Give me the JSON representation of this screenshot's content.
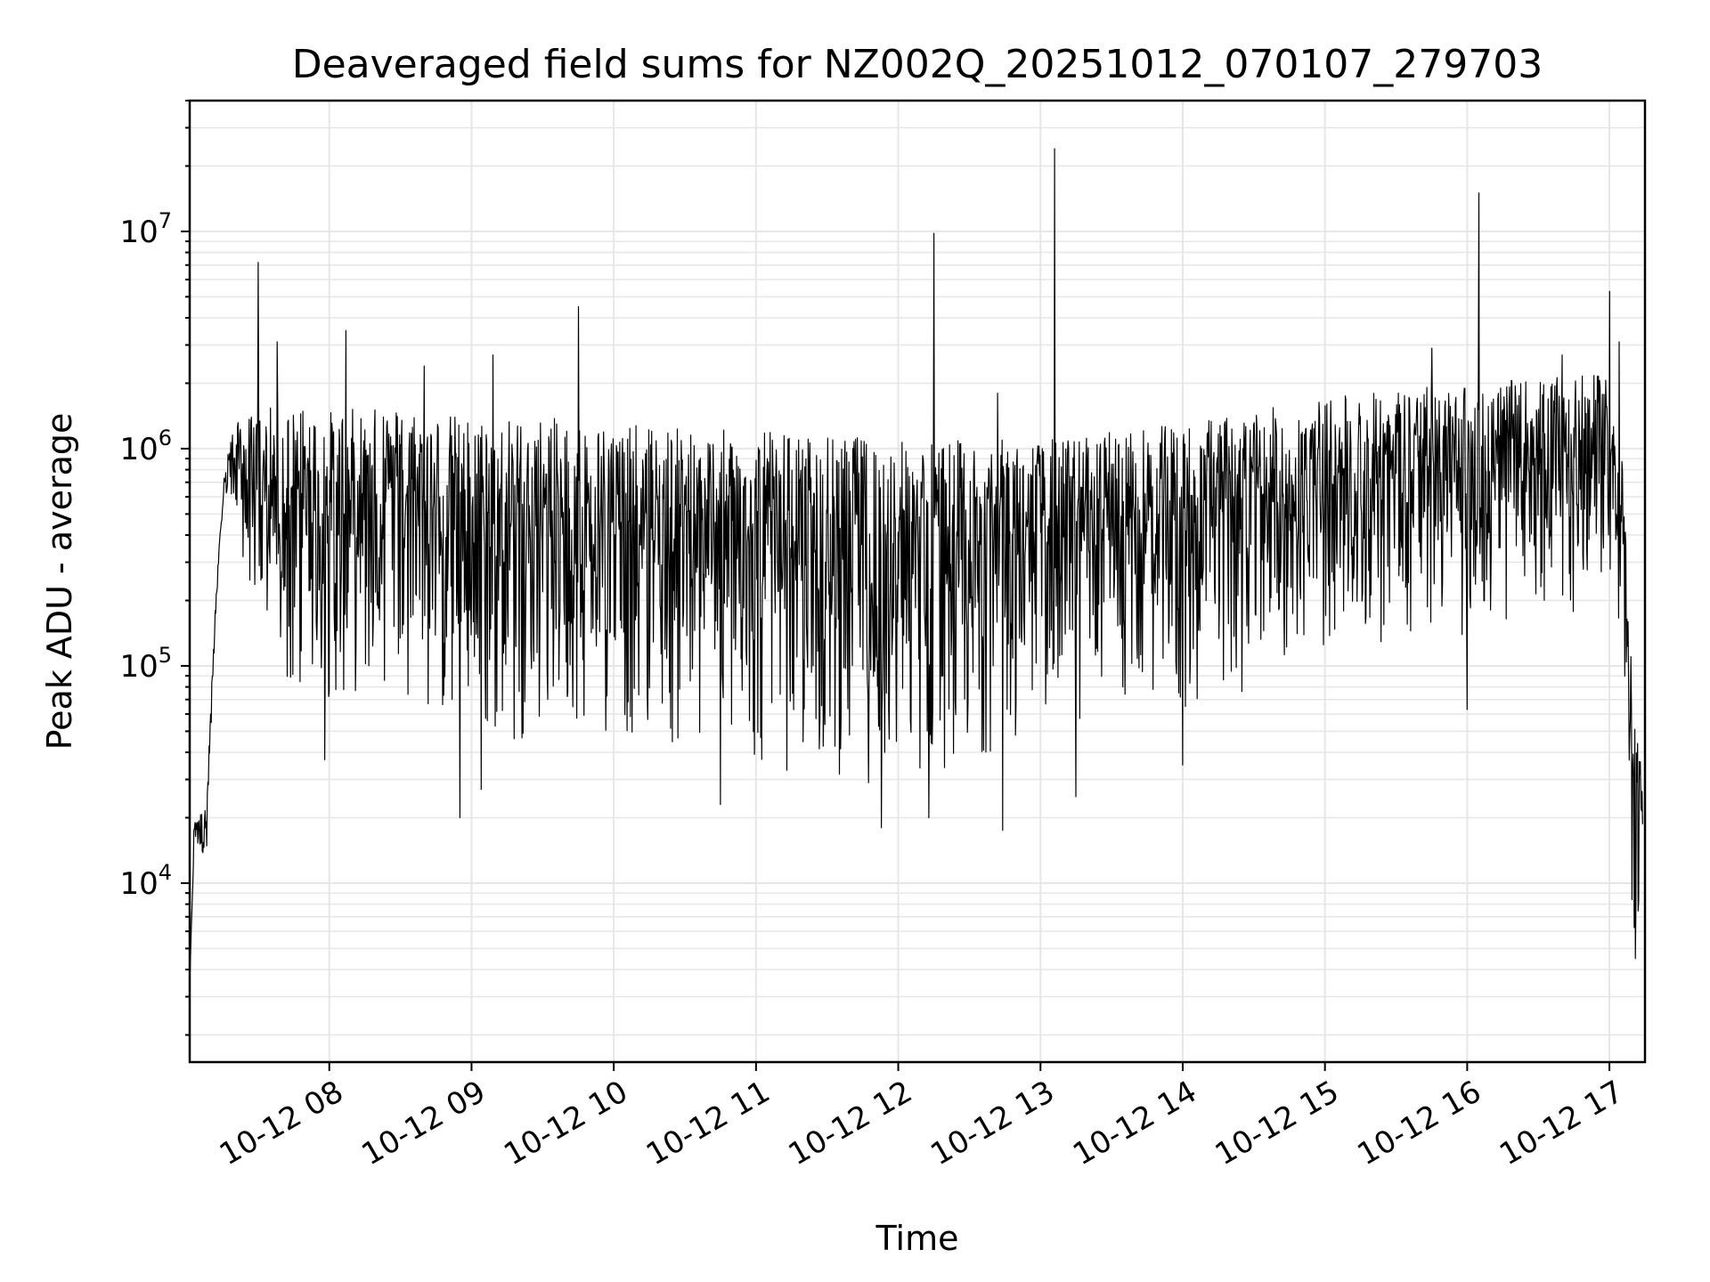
{
  "chart_data": {
    "type": "line",
    "title": "Deaveraged field sums for NZ002Q_20251012_070107_279703",
    "xlabel": "Time",
    "ylabel": "Peak ADU - average",
    "yscale": "log",
    "ylim": [
      1500,
      40000000
    ],
    "xlim": [
      "2025-10-12T07:01:07",
      "2025-10-12T17:15:00"
    ],
    "grid": true,
    "line_color": "#000000",
    "grid_color": "#e6e6e6",
    "x_ticks": [
      {
        "t": "2025-10-12T08:00",
        "label": "10-12 08"
      },
      {
        "t": "2025-10-12T09:00",
        "label": "10-12 09"
      },
      {
        "t": "2025-10-12T10:00",
        "label": "10-12 10"
      },
      {
        "t": "2025-10-12T11:00",
        "label": "10-12 11"
      },
      {
        "t": "2025-10-12T12:00",
        "label": "10-12 12"
      },
      {
        "t": "2025-10-12T13:00",
        "label": "10-12 13"
      },
      {
        "t": "2025-10-12T14:00",
        "label": "10-12 14"
      },
      {
        "t": "2025-10-12T15:00",
        "label": "10-12 15"
      },
      {
        "t": "2025-10-12T16:00",
        "label": "10-12 16"
      },
      {
        "t": "2025-10-12T17:00",
        "label": "10-12 17"
      }
    ],
    "y_ticks": [
      {
        "value": 10000,
        "base": "10",
        "exp": "4"
      },
      {
        "value": 100000,
        "base": "10",
        "exp": "5"
      },
      {
        "value": 1000000,
        "base": "10",
        "exp": "6"
      },
      {
        "value": 10000000,
        "base": "10",
        "exp": "7"
      }
    ],
    "series": [
      {
        "note_upper": "upper envelope of dense signal (time, value)",
        "upper": [
          [
            "2025-10-12T07:01",
            3000
          ],
          [
            "2025-10-12T07:03",
            20000
          ],
          [
            "2025-10-12T07:08",
            22000
          ],
          [
            "2025-10-12T07:12",
            200000
          ],
          [
            "2025-10-12T07:16",
            900000
          ],
          [
            "2025-10-12T07:20",
            1300000
          ],
          [
            "2025-10-12T07:30",
            1500000
          ],
          [
            "2025-10-12T07:40",
            1600000
          ],
          [
            "2025-10-12T08:00",
            1500000
          ],
          [
            "2025-10-12T08:30",
            1600000
          ],
          [
            "2025-10-12T09:00",
            1400000
          ],
          [
            "2025-10-12T09:30",
            1400000
          ],
          [
            "2025-10-12T10:00",
            1300000
          ],
          [
            "2025-10-12T11:00",
            1200000
          ],
          [
            "2025-10-12T12:00",
            1100000
          ],
          [
            "2025-10-12T13:00",
            1100000
          ],
          [
            "2025-10-12T14:00",
            1300000
          ],
          [
            "2025-10-12T14:30",
            1500000
          ],
          [
            "2025-10-12T15:00",
            1700000
          ],
          [
            "2025-10-12T15:30",
            1900000
          ],
          [
            "2025-10-12T16:00",
            2000000
          ],
          [
            "2025-10-12T16:30",
            2100000
          ],
          [
            "2025-10-12T17:00",
            2200000
          ],
          [
            "2025-10-12T17:05",
            1000000
          ],
          [
            "2025-10-12T17:08",
            300000
          ],
          [
            "2025-10-12T17:10",
            60000
          ],
          [
            "2025-10-12T17:14",
            40000
          ]
        ],
        "lower": [
          [
            "2025-10-12T07:01",
            3000
          ],
          [
            "2025-10-12T07:03",
            15000
          ],
          [
            "2025-10-12T07:08",
            12000
          ],
          [
            "2025-10-12T07:12",
            150000
          ],
          [
            "2025-10-12T07:16",
            600000
          ],
          [
            "2025-10-12T07:20",
            400000
          ],
          [
            "2025-10-12T07:30",
            150000
          ],
          [
            "2025-10-12T07:45",
            50000
          ],
          [
            "2025-10-12T08:00",
            60000
          ],
          [
            "2025-10-12T08:30",
            80000
          ],
          [
            "2025-10-12T09:00",
            30000
          ],
          [
            "2025-10-12T09:30",
            50000
          ],
          [
            "2025-10-12T10:00",
            45000
          ],
          [
            "2025-10-12T10:30",
            35000
          ],
          [
            "2025-10-12T11:00",
            28000
          ],
          [
            "2025-10-12T11:30",
            30000
          ],
          [
            "2025-10-12T12:00",
            25000
          ],
          [
            "2025-10-12T12:30",
            35000
          ],
          [
            "2025-10-12T13:00",
            45000
          ],
          [
            "2025-10-12T13:30",
            60000
          ],
          [
            "2025-10-12T14:00",
            50000
          ],
          [
            "2025-10-12T14:30",
            80000
          ],
          [
            "2025-10-12T15:00",
            110000
          ],
          [
            "2025-10-12T15:30",
            120000
          ],
          [
            "2025-10-12T16:00",
            130000
          ],
          [
            "2025-10-12T16:30",
            140000
          ],
          [
            "2025-10-12T17:00",
            200000
          ],
          [
            "2025-10-12T17:05",
            80000
          ],
          [
            "2025-10-12T17:08",
            15000
          ],
          [
            "2025-10-12T17:10",
            5000
          ],
          [
            "2025-10-12T17:14",
            8000
          ]
        ],
        "spikes": [
          [
            "2025-10-12T07:30",
            7200000
          ],
          [
            "2025-10-12T07:38",
            3100000
          ],
          [
            "2025-10-12T08:07",
            3500000
          ],
          [
            "2025-10-12T08:40",
            2400000
          ],
          [
            "2025-10-12T09:09",
            2700000
          ],
          [
            "2025-10-12T09:45",
            4500000
          ],
          [
            "2025-10-12T12:15",
            9800000
          ],
          [
            "2025-10-12T12:42",
            1800000
          ],
          [
            "2025-10-12T13:06",
            24000000
          ],
          [
            "2025-10-12T15:45",
            2900000
          ],
          [
            "2025-10-12T16:05",
            15000000
          ],
          [
            "2025-10-12T16:40",
            2700000
          ],
          [
            "2025-10-12T17:00",
            5300000
          ],
          [
            "2025-10-12T17:04",
            3100000
          ]
        ],
        "dips": [
          [
            "2025-10-12T07:58",
            37000
          ],
          [
            "2025-10-12T08:55",
            20000
          ],
          [
            "2025-10-12T09:04",
            27000
          ],
          [
            "2025-10-12T10:45",
            23000
          ],
          [
            "2025-10-12T11:53",
            18000
          ],
          [
            "2025-10-12T12:13",
            20000
          ],
          [
            "2025-10-12T12:44",
            17500
          ],
          [
            "2025-10-12T13:15",
            25000
          ],
          [
            "2025-10-12T14:00",
            35000
          ],
          [
            "2025-10-12T16:00",
            63000
          ],
          [
            "2025-10-12T17:11",
            4500
          ]
        ]
      }
    ]
  }
}
